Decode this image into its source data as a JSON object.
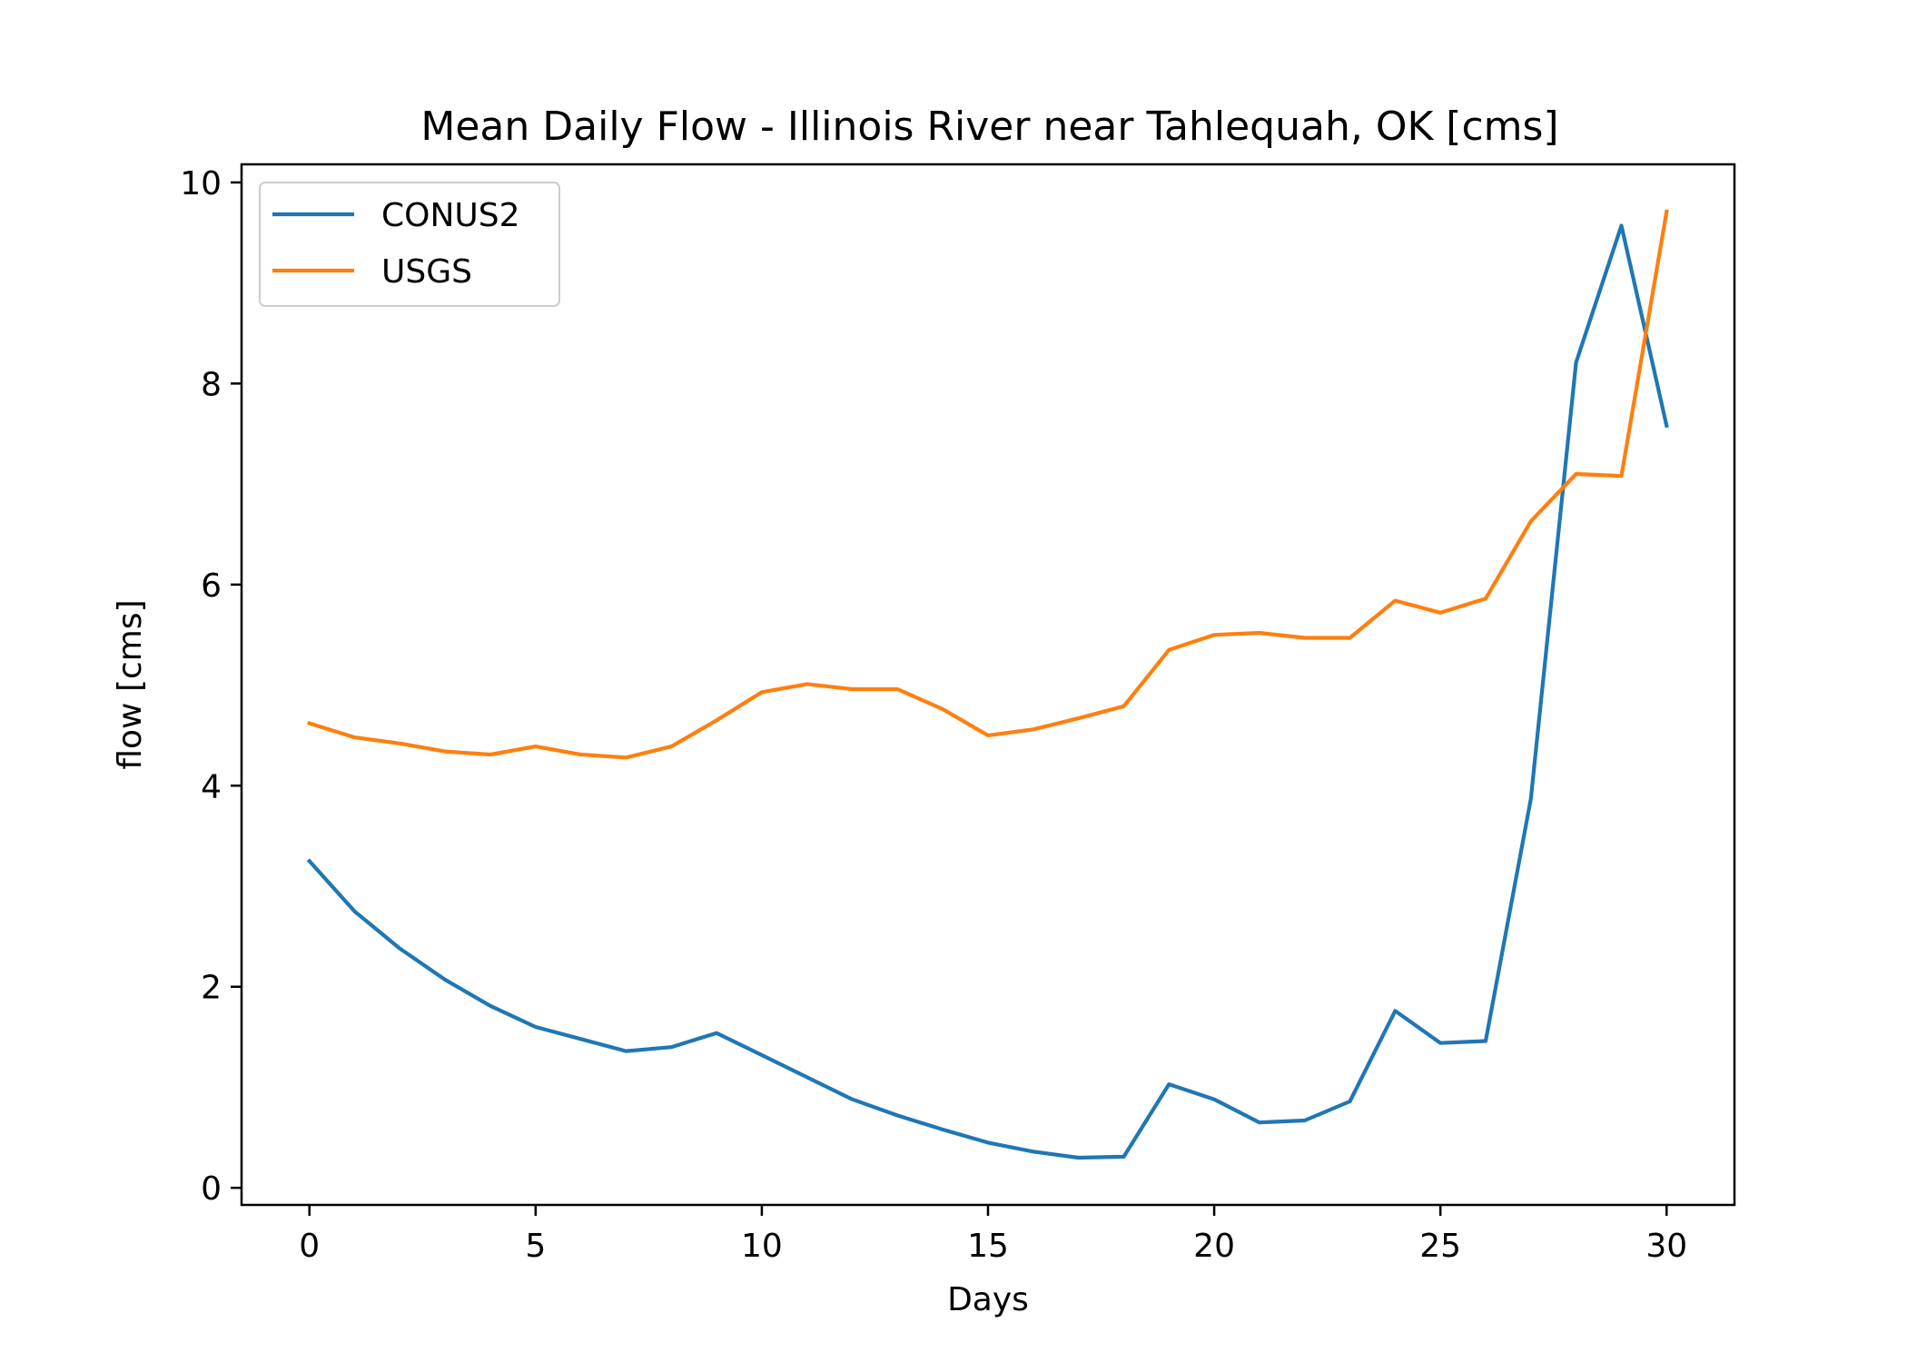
{
  "chart_data": {
    "type": "line",
    "title": "Mean Daily Flow - Illinois River near Tahlequah, OK [cms]",
    "xlabel": "Days",
    "ylabel": "flow [cms]",
    "xlim": [
      -1.5,
      31.5
    ],
    "ylim": [
      -0.17,
      10.18
    ],
    "xticks": [
      0,
      5,
      10,
      15,
      20,
      25,
      30
    ],
    "yticks": [
      0,
      2,
      4,
      6,
      8,
      10
    ],
    "grid": false,
    "legend_position": "top-left",
    "x": [
      0,
      1,
      2,
      3,
      4,
      5,
      6,
      7,
      8,
      9,
      10,
      11,
      12,
      13,
      14,
      15,
      16,
      17,
      18,
      19,
      20,
      21,
      22,
      23,
      24,
      25,
      26,
      27,
      28,
      29,
      30
    ],
    "series": [
      {
        "name": "CONUS2",
        "color": "#1f77b4",
        "values": [
          3.25,
          2.75,
          2.38,
          2.07,
          1.81,
          1.6,
          1.48,
          1.36,
          1.4,
          1.54,
          1.32,
          1.1,
          0.88,
          0.72,
          0.58,
          0.45,
          0.36,
          0.3,
          0.31,
          1.03,
          0.88,
          0.65,
          0.67,
          0.86,
          1.76,
          1.44,
          1.46,
          3.87,
          8.21,
          9.57,
          7.58
        ]
      },
      {
        "name": "USGS",
        "color": "#ff7f0e",
        "values": [
          4.62,
          4.48,
          4.42,
          4.34,
          4.31,
          4.39,
          4.31,
          4.28,
          4.39,
          4.65,
          4.93,
          5.01,
          4.96,
          4.96,
          4.76,
          4.5,
          4.56,
          4.67,
          4.79,
          5.35,
          5.5,
          5.52,
          5.47,
          5.47,
          5.84,
          5.72,
          5.86,
          6.63,
          7.1,
          7.08,
          9.71
        ]
      }
    ]
  }
}
